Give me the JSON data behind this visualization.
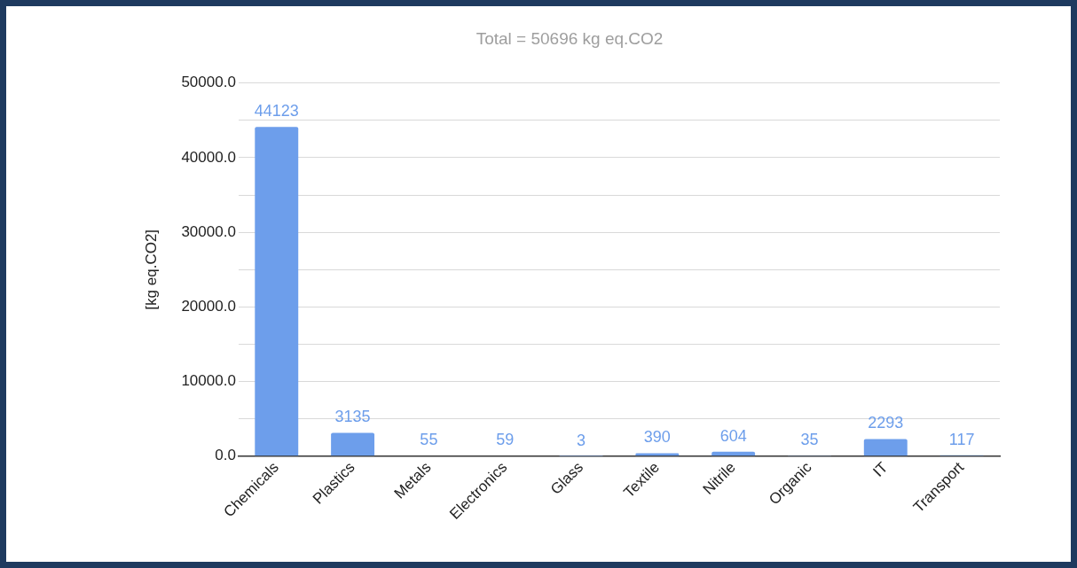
{
  "chart_data": {
    "type": "bar",
    "title": "Total = 50696 kg eq.CO2",
    "ylabel": "[kg eq.CO2]",
    "categories": [
      "Chemicals",
      "Plastics",
      "Metals",
      "Electronics",
      "Glass",
      "Textile",
      "Nitrile",
      "Organic",
      "IT",
      "Transport"
    ],
    "values": [
      44123,
      3135,
      55,
      59,
      3,
      390,
      604,
      35,
      2293,
      117
    ],
    "color": "#6d9eeb",
    "ylim": [
      0,
      50000
    ],
    "yticks": [
      {
        "value": 0,
        "label": "0.0"
      },
      {
        "value": 5000,
        "label": null
      },
      {
        "value": 10000,
        "label": "10000.0"
      },
      {
        "value": 15000,
        "label": null
      },
      {
        "value": 20000,
        "label": "20000.0"
      },
      {
        "value": 25000,
        "label": null
      },
      {
        "value": 30000,
        "label": "30000.0"
      },
      {
        "value": 35000,
        "label": null
      },
      {
        "value": 40000,
        "label": "40000.0"
      },
      {
        "value": 45000,
        "label": null
      },
      {
        "value": 50000,
        "label": "50000.0"
      }
    ],
    "grid": "y",
    "legend": false,
    "data_labels": true
  }
}
